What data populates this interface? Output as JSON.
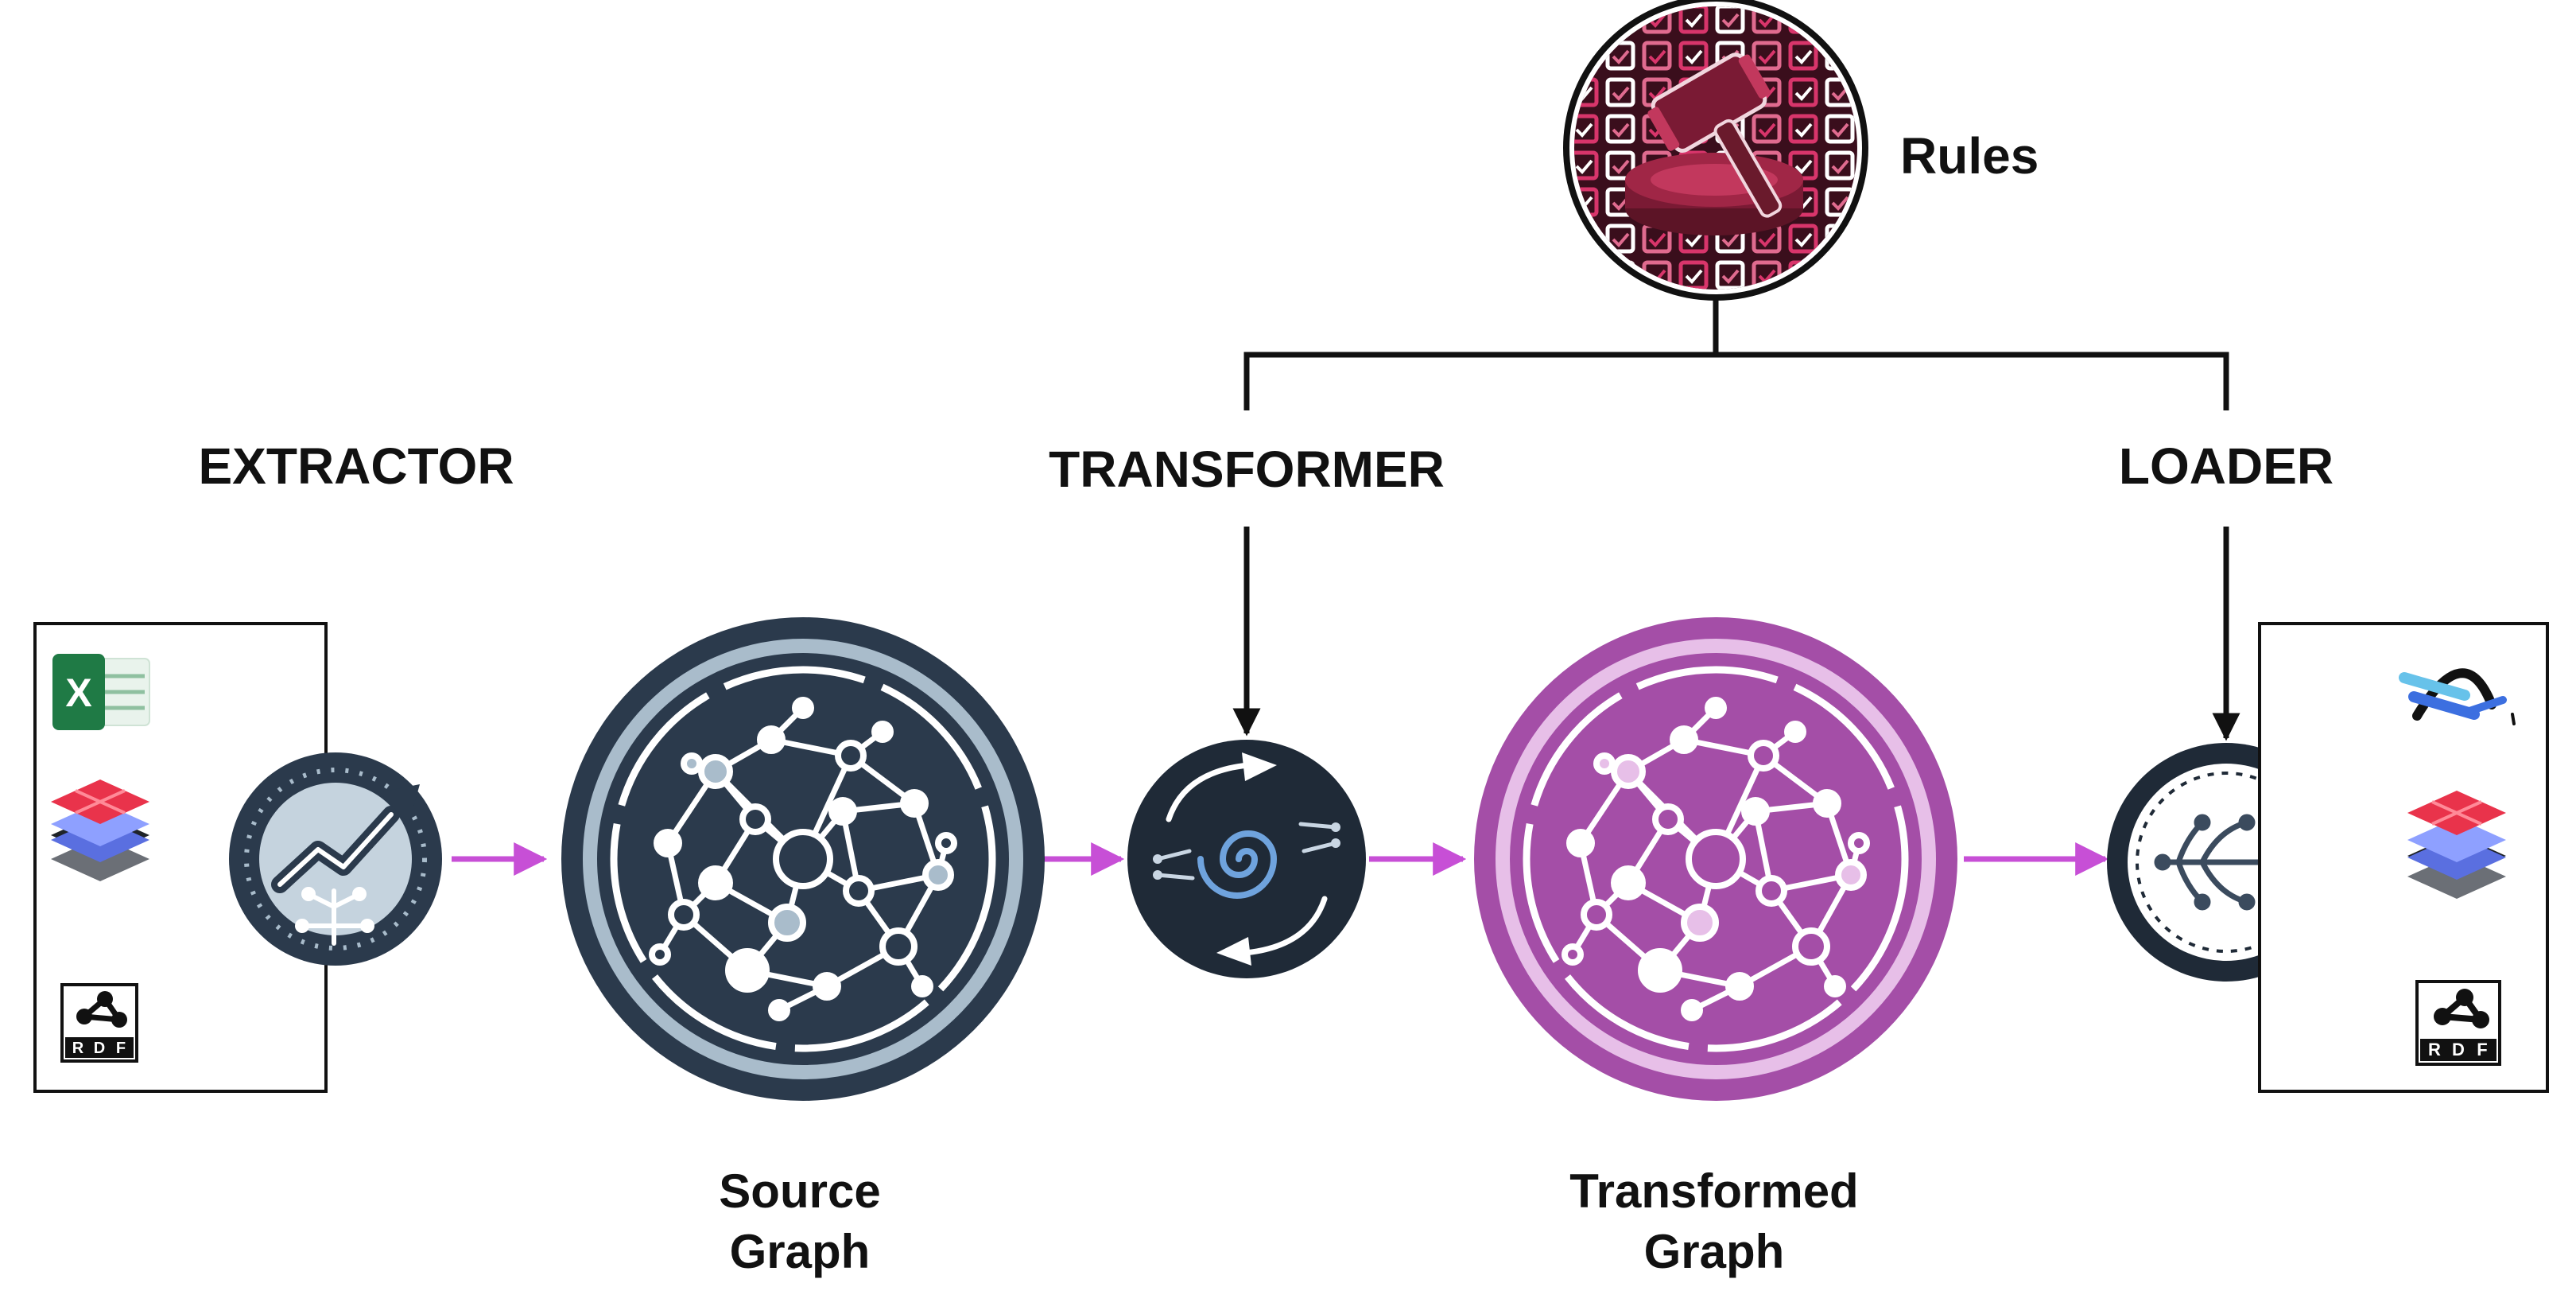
{
  "stages": {
    "extractor": "EXTRACTOR",
    "transformer": "TRANSFORMER",
    "loader": "LOADER"
  },
  "rules_label": "Rules",
  "source_graph": {
    "line1": "Source",
    "line2": "Graph"
  },
  "transformed_graph": {
    "line1": "Transformed",
    "line2": "Graph"
  },
  "rdf_badge": {
    "letters": [
      "R",
      "D",
      "F"
    ]
  },
  "excel_icon_letter": "X",
  "colors": {
    "dark_navy": "#2b3a4c",
    "light_ring": "#a9bccb",
    "purple": "#a44ea7",
    "light_purple": "#e7bfe8",
    "flow_arrow": "#c74fd6",
    "crimson": "#7a1a34",
    "pink": "#d8356b",
    "excel_green": "#1f7a45"
  }
}
